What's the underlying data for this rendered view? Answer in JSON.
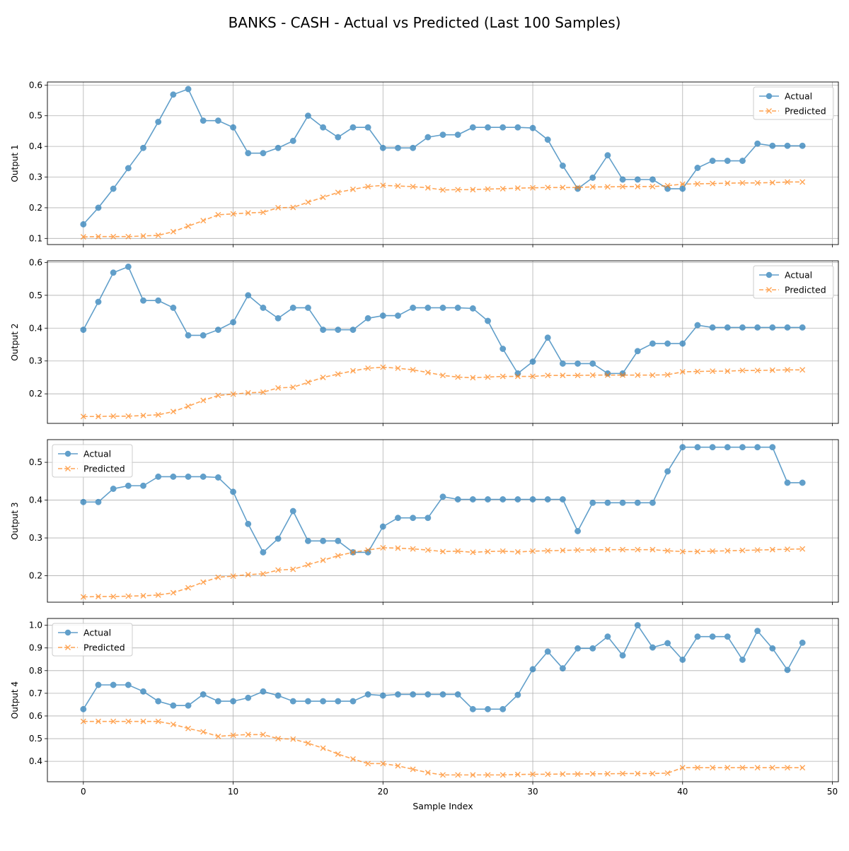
{
  "figure": {
    "title": "BANKS - CASH - Actual vs Predicted (Last 100 Samples)",
    "xlabel": "Sample Index"
  },
  "colors": {
    "actual": "#1f77b4",
    "predicted": "#ff7f0e",
    "grid": "#b0b0b0"
  },
  "chart_data": [
    {
      "type": "line",
      "ylabel": "Output 1",
      "xlim": [
        -2.4,
        50.4
      ],
      "ylim": [
        0.08,
        0.61
      ],
      "xticks": [
        0,
        10,
        20,
        30,
        40,
        50
      ],
      "yticks": [
        0.1,
        0.2,
        0.3,
        0.4,
        0.5,
        0.6
      ],
      "xticklabels_visible": false,
      "legend_position": "upper-right",
      "grid": true,
      "series": [
        {
          "name": "Actual",
          "style": "solid-circle",
          "values": [
            0.146,
            0.2,
            0.262,
            0.329,
            0.395,
            0.48,
            0.569,
            0.587,
            0.484,
            0.484,
            0.462,
            0.378,
            0.378,
            0.395,
            0.418,
            0.5,
            0.462,
            0.43,
            0.462,
            0.462,
            0.395,
            0.395,
            0.395,
            0.43,
            0.438,
            0.438,
            0.462,
            0.462,
            0.462,
            0.462,
            0.46,
            0.422,
            0.337,
            0.262,
            0.298,
            0.371,
            0.292,
            0.292,
            0.292,
            0.262,
            0.262,
            0.33,
            0.353,
            0.353,
            0.353,
            0.409,
            0.402,
            0.402,
            0.402
          ]
        },
        {
          "name": "Predicted",
          "style": "dashed-x",
          "values": [
            0.105,
            0.106,
            0.106,
            0.106,
            0.108,
            0.11,
            0.122,
            0.14,
            0.158,
            0.177,
            0.18,
            0.183,
            0.185,
            0.2,
            0.201,
            0.218,
            0.234,
            0.25,
            0.26,
            0.269,
            0.273,
            0.271,
            0.269,
            0.265,
            0.258,
            0.259,
            0.259,
            0.261,
            0.262,
            0.264,
            0.265,
            0.266,
            0.266,
            0.266,
            0.268,
            0.268,
            0.269,
            0.269,
            0.269,
            0.272,
            0.277,
            0.278,
            0.279,
            0.28,
            0.281,
            0.281,
            0.282,
            0.284,
            0.284
          ]
        }
      ]
    },
    {
      "type": "line",
      "ylabel": "Output 2",
      "xlim": [
        -2.4,
        50.4
      ],
      "ylim": [
        0.11,
        0.605
      ],
      "xticks": [
        0,
        10,
        20,
        30,
        40,
        50
      ],
      "yticks": [
        0.2,
        0.3,
        0.4,
        0.5,
        0.6
      ],
      "xticklabels_visible": false,
      "legend_position": "upper-right",
      "grid": true,
      "series": [
        {
          "name": "Actual",
          "style": "solid-circle",
          "values": [
            0.395,
            0.48,
            0.569,
            0.587,
            0.484,
            0.484,
            0.462,
            0.378,
            0.378,
            0.395,
            0.418,
            0.5,
            0.462,
            0.43,
            0.462,
            0.462,
            0.395,
            0.395,
            0.395,
            0.43,
            0.438,
            0.438,
            0.462,
            0.462,
            0.462,
            0.462,
            0.46,
            0.422,
            0.337,
            0.262,
            0.298,
            0.371,
            0.292,
            0.292,
            0.292,
            0.262,
            0.262,
            0.33,
            0.353,
            0.353,
            0.353,
            0.409,
            0.402,
            0.402,
            0.402,
            0.402,
            0.402,
            0.402,
            0.402
          ]
        },
        {
          "name": "Predicted",
          "style": "dashed-x",
          "values": [
            0.131,
            0.131,
            0.132,
            0.132,
            0.134,
            0.136,
            0.146,
            0.162,
            0.18,
            0.195,
            0.199,
            0.203,
            0.205,
            0.218,
            0.22,
            0.235,
            0.25,
            0.26,
            0.27,
            0.278,
            0.281,
            0.278,
            0.273,
            0.265,
            0.256,
            0.251,
            0.249,
            0.251,
            0.253,
            0.253,
            0.253,
            0.256,
            0.256,
            0.256,
            0.257,
            0.257,
            0.257,
            0.257,
            0.257,
            0.258,
            0.267,
            0.268,
            0.269,
            0.269,
            0.271,
            0.271,
            0.272,
            0.273,
            0.273
          ]
        }
      ]
    },
    {
      "type": "line",
      "ylabel": "Output 3",
      "xlim": [
        -2.4,
        50.4
      ],
      "ylim": [
        0.13,
        0.56
      ],
      "xticks": [
        0,
        10,
        20,
        30,
        40,
        50
      ],
      "yticks": [
        0.2,
        0.3,
        0.4,
        0.5
      ],
      "xticklabels_visible": false,
      "legend_position": "upper-left",
      "grid": true,
      "series": [
        {
          "name": "Actual",
          "style": "solid-circle",
          "values": [
            0.395,
            0.395,
            0.43,
            0.438,
            0.438,
            0.462,
            0.462,
            0.462,
            0.462,
            0.46,
            0.422,
            0.337,
            0.262,
            0.298,
            0.371,
            0.292,
            0.292,
            0.292,
            0.262,
            0.262,
            0.33,
            0.353,
            0.353,
            0.353,
            0.409,
            0.402,
            0.402,
            0.402,
            0.402,
            0.402,
            0.402,
            0.402,
            0.402,
            0.318,
            0.393,
            0.393,
            0.393,
            0.393,
            0.393,
            0.476,
            0.54,
            0.54,
            0.54,
            0.54,
            0.54,
            0.54,
            0.54,
            0.446,
            0.446
          ]
        },
        {
          "name": "Predicted",
          "style": "dashed-x",
          "values": [
            0.144,
            0.145,
            0.145,
            0.146,
            0.147,
            0.149,
            0.155,
            0.168,
            0.183,
            0.196,
            0.199,
            0.203,
            0.205,
            0.215,
            0.217,
            0.229,
            0.241,
            0.253,
            0.262,
            0.268,
            0.274,
            0.273,
            0.271,
            0.268,
            0.264,
            0.265,
            0.262,
            0.264,
            0.265,
            0.263,
            0.265,
            0.266,
            0.267,
            0.268,
            0.268,
            0.269,
            0.269,
            0.269,
            0.269,
            0.266,
            0.264,
            0.264,
            0.265,
            0.266,
            0.267,
            0.268,
            0.269,
            0.27,
            0.271
          ]
        }
      ]
    },
    {
      "type": "line",
      "ylabel": "Output 4",
      "xlim": [
        -2.4,
        50.4
      ],
      "ylim": [
        0.31,
        1.03
      ],
      "xticks": [
        0,
        10,
        20,
        30,
        40,
        50
      ],
      "yticks": [
        0.4,
        0.5,
        0.6,
        0.7,
        0.8,
        0.9,
        1.0
      ],
      "xticklabels_visible": true,
      "legend_position": "upper-left",
      "grid": true,
      "series": [
        {
          "name": "Actual",
          "style": "solid-circle",
          "values": [
            0.63,
            0.737,
            0.737,
            0.737,
            0.708,
            0.665,
            0.646,
            0.646,
            0.695,
            0.665,
            0.665,
            0.68,
            0.708,
            0.69,
            0.665,
            0.665,
            0.665,
            0.665,
            0.665,
            0.695,
            0.69,
            0.695,
            0.695,
            0.695,
            0.695,
            0.695,
            0.63,
            0.63,
            0.63,
            0.693,
            0.806,
            0.884,
            0.81,
            0.898,
            0.898,
            0.95,
            0.867,
            1.0,
            0.902,
            0.921,
            0.848,
            0.95,
            0.95,
            0.95,
            0.848,
            0.975,
            0.898,
            0.803,
            0.923
          ]
        },
        {
          "name": "Predicted",
          "style": "dashed-x",
          "values": [
            0.576,
            0.576,
            0.576,
            0.576,
            0.576,
            0.576,
            0.563,
            0.545,
            0.53,
            0.51,
            0.515,
            0.518,
            0.518,
            0.5,
            0.498,
            0.48,
            0.458,
            0.432,
            0.41,
            0.39,
            0.39,
            0.38,
            0.365,
            0.35,
            0.34,
            0.34,
            0.34,
            0.34,
            0.34,
            0.342,
            0.343,
            0.343,
            0.344,
            0.344,
            0.345,
            0.345,
            0.346,
            0.346,
            0.346,
            0.348,
            0.372,
            0.372,
            0.372,
            0.372,
            0.372,
            0.372,
            0.372,
            0.372,
            0.372
          ]
        }
      ]
    }
  ]
}
